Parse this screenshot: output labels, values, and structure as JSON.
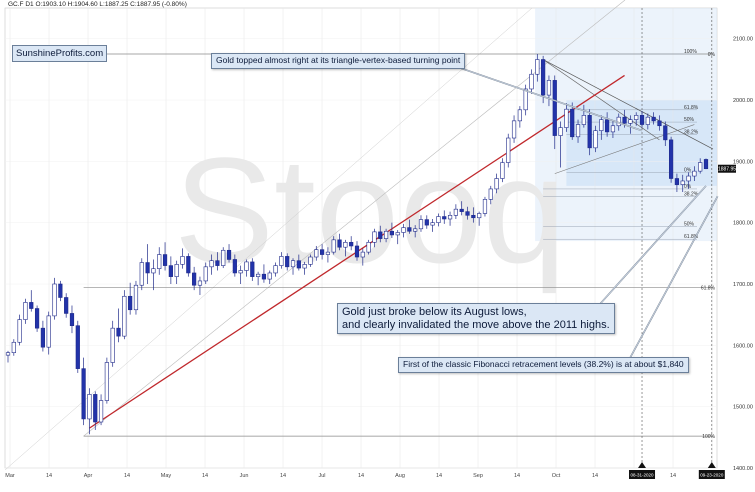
{
  "chart_data": {
    "type": "candlestick",
    "symbol_header": "GC.F  D1  O:1903.10  H:1904.60  L:1887.25  C:1887.95  (-0.80%)",
    "brand": "SunshineProfits.com",
    "watermark": "Stooq",
    "price_ylim": [
      1400,
      2150
    ],
    "y_tick_labels": [
      "2100.00",
      "2000.00",
      "1900.00",
      "1800.00",
      "1700.00",
      "1600.00",
      "1500.00",
      "1400.00"
    ],
    "y_tick_values": [
      2100,
      2000,
      1900,
      1800,
      1700,
      1600,
      1500,
      1400
    ],
    "last_price_label": "1887.95",
    "last_price": 1887.95,
    "x_tick_labels": [
      "Mar",
      "14",
      "Apr",
      "14",
      "May",
      "14",
      "Jun",
      "14",
      "Jul",
      "14",
      "Aug",
      "14",
      "Sep",
      "14",
      "Oct",
      "14",
      "Nov",
      "14",
      "Dec"
    ],
    "fib_levels_full": [
      {
        "label": "100%",
        "value": 1452
      },
      {
        "label": "61.8%",
        "value": 1694
      },
      {
        "label": "0%",
        "value": 2075
      }
    ],
    "fib_levels_small": [
      {
        "label": "0%",
        "value": 1855
      },
      {
        "label": "38.2%",
        "value": 1843
      },
      {
        "label": "50%",
        "value": 1794
      },
      {
        "label": "61.8%",
        "value": 1773
      },
      {
        "label": "100%",
        "value": 2075
      }
    ],
    "fib_levels_swing": [
      {
        "label": "61.8%",
        "value": 1984
      },
      {
        "label": "50%",
        "value": 1964
      },
      {
        "label": "38.2%",
        "value": 1944
      },
      {
        "label": "0%",
        "value": 1882
      }
    ],
    "vertical_markers": [
      "08-31-2020",
      "09-23-2020"
    ],
    "candles": [
      [
        1584,
        1591,
        1572,
        1588
      ],
      [
        1588,
        1610,
        1583,
        1605
      ],
      [
        1605,
        1650,
        1600,
        1642
      ],
      [
        1642,
        1676,
        1635,
        1670
      ],
      [
        1670,
        1690,
        1655,
        1660
      ],
      [
        1660,
        1665,
        1622,
        1628
      ],
      [
        1628,
        1640,
        1590,
        1597
      ],
      [
        1597,
        1655,
        1585,
        1648
      ],
      [
        1648,
        1710,
        1642,
        1700
      ],
      [
        1700,
        1705,
        1672,
        1678
      ],
      [
        1678,
        1685,
        1645,
        1652
      ],
      [
        1652,
        1665,
        1620,
        1632
      ],
      [
        1632,
        1640,
        1555,
        1562
      ],
      [
        1562,
        1580,
        1470,
        1480
      ],
      [
        1480,
        1530,
        1455,
        1520
      ],
      [
        1520,
        1525,
        1462,
        1475
      ],
      [
        1475,
        1520,
        1470,
        1510
      ],
      [
        1510,
        1580,
        1505,
        1572
      ],
      [
        1572,
        1640,
        1565,
        1628
      ],
      [
        1628,
        1660,
        1605,
        1615
      ],
      [
        1615,
        1690,
        1610,
        1680
      ],
      [
        1680,
        1702,
        1650,
        1658
      ],
      [
        1658,
        1705,
        1650,
        1698
      ],
      [
        1698,
        1742,
        1690,
        1735
      ],
      [
        1735,
        1765,
        1700,
        1718
      ],
      [
        1718,
        1740,
        1690,
        1725
      ],
      [
        1725,
        1760,
        1715,
        1748
      ],
      [
        1748,
        1768,
        1722,
        1730
      ],
      [
        1730,
        1745,
        1700,
        1712
      ],
      [
        1712,
        1738,
        1700,
        1732
      ],
      [
        1732,
        1758,
        1725,
        1745
      ],
      [
        1745,
        1750,
        1712,
        1718
      ],
      [
        1718,
        1728,
        1690,
        1698
      ],
      [
        1698,
        1712,
        1682,
        1705
      ],
      [
        1705,
        1735,
        1700,
        1728
      ],
      [
        1728,
        1748,
        1715,
        1738
      ],
      [
        1738,
        1752,
        1722,
        1730
      ],
      [
        1730,
        1760,
        1726,
        1755
      ],
      [
        1755,
        1765,
        1735,
        1740
      ],
      [
        1740,
        1748,
        1712,
        1718
      ],
      [
        1718,
        1730,
        1700,
        1722
      ],
      [
        1722,
        1740,
        1712,
        1736
      ],
      [
        1736,
        1742,
        1705,
        1712
      ],
      [
        1712,
        1720,
        1698,
        1716
      ],
      [
        1716,
        1732,
        1702,
        1708
      ],
      [
        1708,
        1722,
        1700,
        1718
      ],
      [
        1718,
        1735,
        1712,
        1730
      ],
      [
        1730,
        1752,
        1725,
        1745
      ],
      [
        1745,
        1750,
        1722,
        1728
      ],
      [
        1728,
        1742,
        1715,
        1738
      ],
      [
        1738,
        1748,
        1722,
        1726
      ],
      [
        1726,
        1736,
        1715,
        1732
      ],
      [
        1732,
        1748,
        1728,
        1744
      ],
      [
        1744,
        1762,
        1738,
        1756
      ],
      [
        1756,
        1765,
        1740,
        1748
      ],
      [
        1748,
        1760,
        1735,
        1752
      ],
      [
        1752,
        1778,
        1748,
        1772
      ],
      [
        1772,
        1782,
        1755,
        1760
      ],
      [
        1760,
        1772,
        1745,
        1768
      ],
      [
        1768,
        1778,
        1755,
        1762
      ],
      [
        1762,
        1770,
        1738,
        1744
      ],
      [
        1744,
        1758,
        1730,
        1752
      ],
      [
        1752,
        1772,
        1748,
        1768
      ],
      [
        1768,
        1790,
        1760,
        1785
      ],
      [
        1785,
        1795,
        1768,
        1774
      ],
      [
        1774,
        1790,
        1768,
        1786
      ],
      [
        1786,
        1800,
        1775,
        1780
      ],
      [
        1780,
        1788,
        1765,
        1784
      ],
      [
        1784,
        1798,
        1776,
        1792
      ],
      [
        1792,
        1805,
        1782,
        1786
      ],
      [
        1786,
        1796,
        1776,
        1790
      ],
      [
        1790,
        1812,
        1785,
        1805
      ],
      [
        1805,
        1812,
        1790,
        1796
      ],
      [
        1796,
        1806,
        1785,
        1800
      ],
      [
        1800,
        1815,
        1794,
        1810
      ],
      [
        1810,
        1820,
        1798,
        1806
      ],
      [
        1806,
        1818,
        1795,
        1812
      ],
      [
        1812,
        1830,
        1806,
        1822
      ],
      [
        1822,
        1835,
        1812,
        1818
      ],
      [
        1818,
        1826,
        1805,
        1812
      ],
      [
        1812,
        1825,
        1800,
        1808
      ],
      [
        1808,
        1818,
        1795,
        1815
      ],
      [
        1815,
        1842,
        1810,
        1838
      ],
      [
        1838,
        1860,
        1830,
        1855
      ],
      [
        1855,
        1880,
        1848,
        1872
      ],
      [
        1872,
        1905,
        1866,
        1898
      ],
      [
        1898,
        1945,
        1890,
        1938
      ],
      [
        1938,
        1975,
        1930,
        1966
      ],
      [
        1966,
        1990,
        1955,
        1984
      ],
      [
        1984,
        2025,
        1975,
        2018
      ],
      [
        2018,
        2050,
        2010,
        2042
      ],
      [
        2042,
        2075,
        2030,
        2066
      ],
      [
        2066,
        2072,
        1995,
        2008
      ],
      [
        2008,
        2040,
        1990,
        2032
      ],
      [
        2032,
        2040,
        1920,
        1942
      ],
      [
        1942,
        1965,
        1890,
        1955
      ],
      [
        1955,
        1995,
        1948,
        1985
      ],
      [
        1985,
        1996,
        1935,
        1940
      ],
      [
        1940,
        1968,
        1930,
        1960
      ],
      [
        1960,
        1992,
        1955,
        1975
      ],
      [
        1975,
        1985,
        1910,
        1922
      ],
      [
        1922,
        1958,
        1915,
        1950
      ],
      [
        1950,
        1975,
        1935,
        1968
      ],
      [
        1968,
        1980,
        1940,
        1948
      ],
      [
        1948,
        1966,
        1938,
        1958
      ],
      [
        1958,
        1978,
        1950,
        1972
      ],
      [
        1972,
        1984,
        1955,
        1962
      ],
      [
        1962,
        1975,
        1945,
        1968
      ],
      [
        1968,
        1980,
        1958,
        1975
      ],
      [
        1975,
        1982,
        1955,
        1960
      ],
      [
        1960,
        1978,
        1952,
        1972
      ],
      [
        1972,
        1980,
        1960,
        1966
      ],
      [
        1966,
        1975,
        1950,
        1958
      ],
      [
        1958,
        1965,
        1925,
        1935
      ],
      [
        1935,
        1940,
        1865,
        1872
      ],
      [
        1872,
        1880,
        1850,
        1862
      ],
      [
        1862,
        1878,
        1850,
        1868
      ],
      [
        1868,
        1882,
        1855,
        1876
      ],
      [
        1876,
        1892,
        1868,
        1884
      ],
      [
        1884,
        1905,
        1880,
        1898
      ],
      [
        1903.1,
        1904.6,
        1887.25,
        1887.95
      ]
    ],
    "annotations": [
      "Gold topped almost right at its triangle-vertex-based turning point",
      "Gold just broke below its August lows,",
      "and clearly invalidated the move above the 2011 highs.",
      "First of the classic Fibonacci retracement levels (38.2%) is at about $1,840"
    ]
  }
}
